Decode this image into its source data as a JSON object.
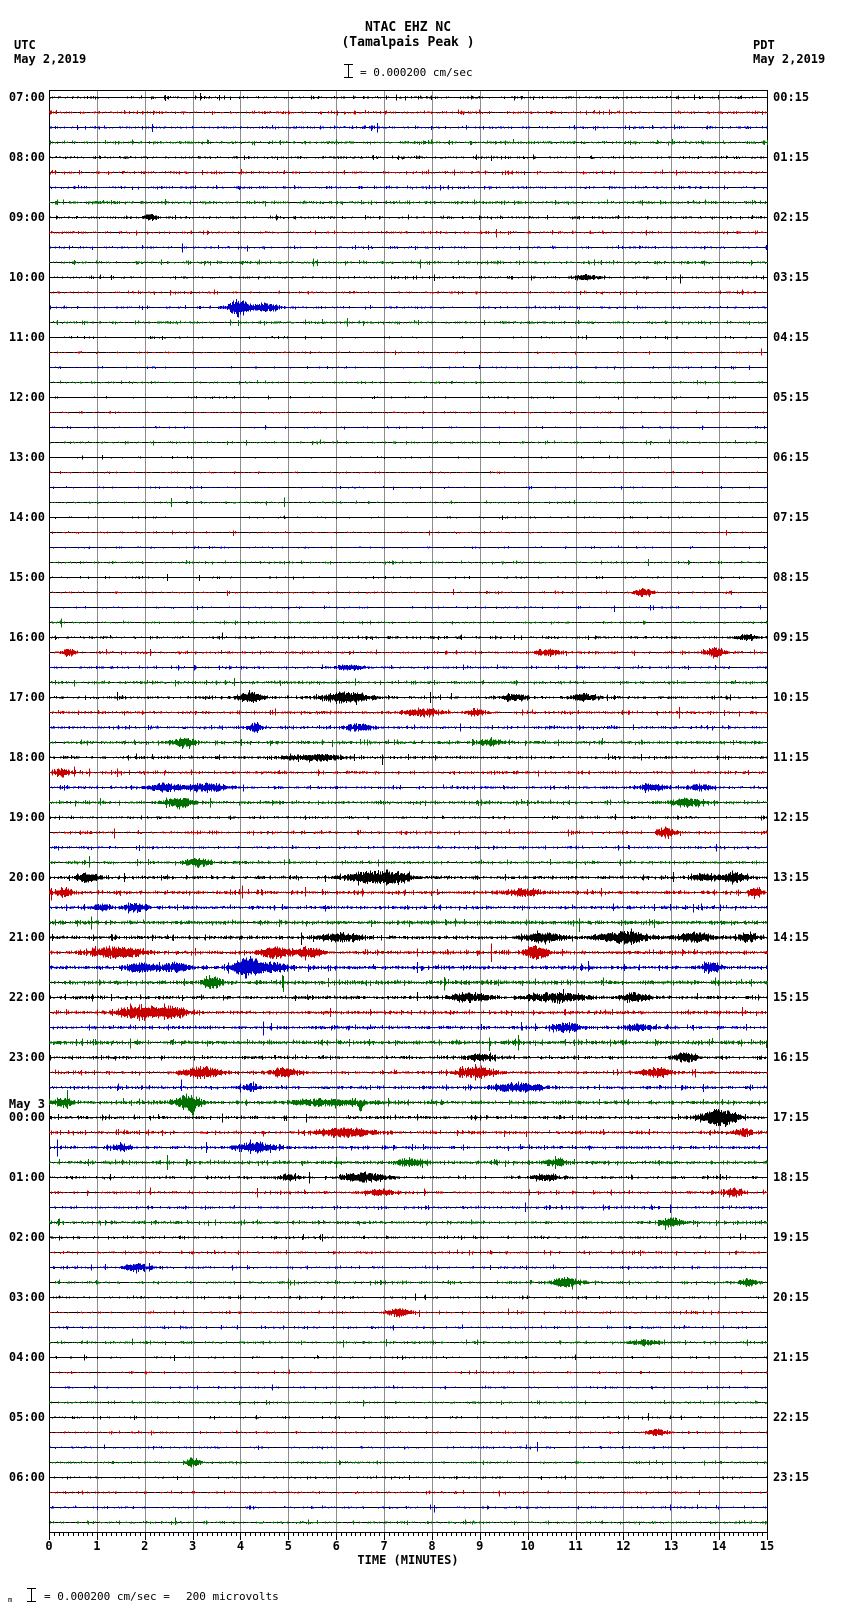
{
  "header": {
    "tz_left": "UTC",
    "date_left": "May 2,2019",
    "tz_right": "PDT",
    "date_right": "May 2,2019",
    "station": "NTAC EHZ NC",
    "location": "(Tamalpais Peak )",
    "scale_label": "= 0.000200 cm/sec"
  },
  "footer": {
    "lead_mark": "m",
    "scale_text": "= 0.000200 cm/sec =",
    "equiv_text": "200 microvolts"
  },
  "x_axis": {
    "label": "TIME (MINUTES)",
    "tick_labels": [
      "0",
      "1",
      "2",
      "3",
      "4",
      "5",
      "6",
      "7",
      "8",
      "9",
      "10",
      "11",
      "12",
      "13",
      "14",
      "15"
    ]
  },
  "chart_data": {
    "type": "line",
    "subtype": "helicorder",
    "title": "NTAC EHZ NC (Tamalpais Peak )",
    "xlabel": "TIME (MINUTES)",
    "x_range_minutes": [
      0,
      15
    ],
    "minutes_per_line": 15,
    "lines_per_hour": 4,
    "hours": 24,
    "trace_colors": [
      "#000000",
      "#c80000",
      "#0000c8",
      "#007000"
    ],
    "grid_color": "#8c8c8c",
    "utc_labels": [
      "07:00",
      "08:00",
      "09:00",
      "10:00",
      "11:00",
      "12:00",
      "13:00",
      "14:00",
      "15:00",
      "16:00",
      "17:00",
      "18:00",
      "19:00",
      "20:00",
      "21:00",
      "22:00",
      "23:00",
      "00:00",
      "01:00",
      "02:00",
      "03:00",
      "04:00",
      "05:00",
      "06:00"
    ],
    "utc_day_change": {
      "label": "May 3",
      "hour_index": 17
    },
    "pdt_labels": [
      "00:15",
      "01:15",
      "02:15",
      "03:15",
      "04:15",
      "05:15",
      "06:15",
      "07:15",
      "08:15",
      "09:15",
      "10:15",
      "11:15",
      "12:15",
      "13:15",
      "14:15",
      "15:15",
      "16:15",
      "17:15",
      "18:15",
      "19:15",
      "20:15",
      "21:15",
      "22:15",
      "23:15"
    ],
    "activity_by_hour": [
      0.9,
      0.9,
      0.85,
      0.8,
      0.6,
      0.6,
      0.55,
      0.6,
      0.65,
      0.9,
      1.0,
      1.0,
      0.9,
      1.2,
      1.3,
      1.2,
      1.1,
      1.1,
      0.95,
      0.85,
      0.75,
      0.7,
      0.7,
      0.75
    ],
    "noise_seed": 20190502,
    "events": [
      {
        "row": 8,
        "t": 2.1,
        "a": 3,
        "w": 0.15
      },
      {
        "row": 12,
        "t": 11.2,
        "a": 2.5,
        "w": 0.3
      },
      {
        "row": 14,
        "t": 3.95,
        "a": 8,
        "w": 0.22
      },
      {
        "row": 14,
        "t": 4.55,
        "a": 3.5,
        "w": 0.3
      },
      {
        "row": 33,
        "t": 12.4,
        "a": 4,
        "w": 0.2
      },
      {
        "row": 36,
        "t": 14.6,
        "a": 3,
        "w": 0.2
      },
      {
        "row": 37,
        "t": 0.4,
        "a": 3.5,
        "w": 0.15
      },
      {
        "row": 37,
        "t": 10.4,
        "a": 3,
        "w": 0.3
      },
      {
        "row": 37,
        "t": 13.9,
        "a": 4,
        "w": 0.2
      },
      {
        "row": 38,
        "t": 6.3,
        "a": 2.5,
        "w": 0.3
      },
      {
        "row": 40,
        "t": 4.2,
        "a": 4,
        "w": 0.3
      },
      {
        "row": 40,
        "t": 6.2,
        "a": 4.5,
        "w": 0.5
      },
      {
        "row": 40,
        "t": 9.7,
        "a": 3,
        "w": 0.3
      },
      {
        "row": 40,
        "t": 11.2,
        "a": 3,
        "w": 0.3
      },
      {
        "row": 41,
        "t": 7.8,
        "a": 3.5,
        "w": 0.4
      },
      {
        "row": 41,
        "t": 8.9,
        "a": 3,
        "w": 0.2
      },
      {
        "row": 42,
        "t": 4.3,
        "a": 4,
        "w": 0.15
      },
      {
        "row": 42,
        "t": 6.5,
        "a": 3,
        "w": 0.3
      },
      {
        "row": 43,
        "t": 2.8,
        "a": 4,
        "w": 0.25
      },
      {
        "row": 43,
        "t": 9.2,
        "a": 2.5,
        "w": 0.3
      },
      {
        "row": 44,
        "t": 5.5,
        "a": 3,
        "w": 0.6
      },
      {
        "row": 45,
        "t": 0.25,
        "a": 4,
        "w": 0.15
      },
      {
        "row": 46,
        "t": 2.4,
        "a": 4,
        "w": 0.3
      },
      {
        "row": 46,
        "t": 3.3,
        "a": 4,
        "w": 0.4
      },
      {
        "row": 46,
        "t": 12.6,
        "a": 3,
        "w": 0.3
      },
      {
        "row": 46,
        "t": 13.6,
        "a": 3,
        "w": 0.25
      },
      {
        "row": 47,
        "t": 2.7,
        "a": 4,
        "w": 0.3
      },
      {
        "row": 47,
        "t": 13.3,
        "a": 4,
        "w": 0.3
      },
      {
        "row": 49,
        "t": 12.9,
        "a": 4.5,
        "w": 0.2
      },
      {
        "row": 51,
        "t": 3.1,
        "a": 4,
        "w": 0.25
      },
      {
        "row": 52,
        "t": 0.8,
        "a": 4,
        "w": 0.2
      },
      {
        "row": 52,
        "t": 6.7,
        "a": 5,
        "w": 0.5
      },
      {
        "row": 52,
        "t": 7.3,
        "a": 4,
        "w": 0.3
      },
      {
        "row": 52,
        "t": 13.7,
        "a": 3,
        "w": 0.3
      },
      {
        "row": 52,
        "t": 14.3,
        "a": 4,
        "w": 0.25
      },
      {
        "row": 53,
        "t": 0.3,
        "a": 4,
        "w": 0.2
      },
      {
        "row": 53,
        "t": 9.9,
        "a": 3,
        "w": 0.4
      },
      {
        "row": 53,
        "t": 14.75,
        "a": 5,
        "w": 0.15
      },
      {
        "row": 54,
        "t": 1.1,
        "a": 3,
        "w": 0.2
      },
      {
        "row": 54,
        "t": 1.8,
        "a": 4,
        "w": 0.25
      },
      {
        "row": 56,
        "t": 6.1,
        "a": 4,
        "w": 0.4
      },
      {
        "row": 56,
        "t": 10.3,
        "a": 4,
        "w": 0.4
      },
      {
        "row": 56,
        "t": 12.0,
        "a": 5,
        "w": 0.5
      },
      {
        "row": 56,
        "t": 13.5,
        "a": 4,
        "w": 0.4
      },
      {
        "row": 56,
        "t": 14.6,
        "a": 4,
        "w": 0.2
      },
      {
        "row": 57,
        "t": 1.4,
        "a": 5,
        "w": 0.5
      },
      {
        "row": 57,
        "t": 4.7,
        "a": 5,
        "w": 0.3
      },
      {
        "row": 57,
        "t": 5.4,
        "a": 4,
        "w": 0.3
      },
      {
        "row": 57,
        "t": 10.2,
        "a": 6,
        "w": 0.25
      },
      {
        "row": 58,
        "t": 1.9,
        "a": 4,
        "w": 0.3
      },
      {
        "row": 58,
        "t": 2.6,
        "a": 4,
        "w": 0.3
      },
      {
        "row": 58,
        "t": 4.15,
        "a": 9,
        "w": 0.28
      },
      {
        "row": 58,
        "t": 4.7,
        "a": 4,
        "w": 0.3
      },
      {
        "row": 58,
        "t": 13.8,
        "a": 4,
        "w": 0.2
      },
      {
        "row": 59,
        "t": 3.4,
        "a": 5,
        "w": 0.2
      },
      {
        "row": 60,
        "t": 8.8,
        "a": 4,
        "w": 0.4
      },
      {
        "row": 60,
        "t": 10.6,
        "a": 4,
        "w": 0.6
      },
      {
        "row": 60,
        "t": 12.2,
        "a": 4,
        "w": 0.3
      },
      {
        "row": 61,
        "t": 1.9,
        "a": 6,
        "w": 0.45
      },
      {
        "row": 61,
        "t": 2.6,
        "a": 5,
        "w": 0.3
      },
      {
        "row": 62,
        "t": 10.8,
        "a": 4,
        "w": 0.3
      },
      {
        "row": 62,
        "t": 12.3,
        "a": 3,
        "w": 0.3
      },
      {
        "row": 64,
        "t": 9.0,
        "a": 3,
        "w": 0.3
      },
      {
        "row": 64,
        "t": 13.3,
        "a": 4,
        "w": 0.25
      },
      {
        "row": 65,
        "t": 3.2,
        "a": 5,
        "w": 0.4
      },
      {
        "row": 65,
        "t": 4.9,
        "a": 4,
        "w": 0.3
      },
      {
        "row": 65,
        "t": 8.9,
        "a": 5,
        "w": 0.4
      },
      {
        "row": 65,
        "t": 12.7,
        "a": 4,
        "w": 0.3
      },
      {
        "row": 66,
        "t": 4.2,
        "a": 3,
        "w": 0.2
      },
      {
        "row": 66,
        "t": 9.8,
        "a": 4,
        "w": 0.5
      },
      {
        "row": 67,
        "t": 0.3,
        "a": 4,
        "w": 0.2
      },
      {
        "row": 67,
        "t": 2.9,
        "a": 6,
        "w": 0.3
      },
      {
        "row": 67,
        "t": 3.0,
        "a": 9,
        "w": 0.04,
        "dir": -1
      },
      {
        "row": 67,
        "t": 5.8,
        "a": 3,
        "w": 0.8
      },
      {
        "row": 67,
        "t": 6.5,
        "a": 7,
        "w": 0.05,
        "dir": -1
      },
      {
        "row": 68,
        "t": 13.8,
        "a": 4,
        "w": 0.3
      },
      {
        "row": 68,
        "t": 14.1,
        "a": 6,
        "w": 0.3
      },
      {
        "row": 69,
        "t": 6.2,
        "a": 4,
        "w": 0.6
      },
      {
        "row": 69,
        "t": 14.5,
        "a": 3,
        "w": 0.2
      },
      {
        "row": 70,
        "t": 1.5,
        "a": 3,
        "w": 0.2
      },
      {
        "row": 70,
        "t": 4.3,
        "a": 4.5,
        "w": 0.4
      },
      {
        "row": 71,
        "t": 7.5,
        "a": 3,
        "w": 0.3
      },
      {
        "row": 71,
        "t": 10.6,
        "a": 3,
        "w": 0.25
      },
      {
        "row": 72,
        "t": 5.0,
        "a": 3,
        "w": 0.2
      },
      {
        "row": 72,
        "t": 6.6,
        "a": 4.5,
        "w": 0.5
      },
      {
        "row": 72,
        "t": 10.4,
        "a": 3,
        "w": 0.3
      },
      {
        "row": 73,
        "t": 6.9,
        "a": 3,
        "w": 0.3
      },
      {
        "row": 73,
        "t": 14.3,
        "a": 4,
        "w": 0.2
      },
      {
        "row": 75,
        "t": 13.0,
        "a": 4,
        "w": 0.25
      },
      {
        "row": 78,
        "t": 1.8,
        "a": 4,
        "w": 0.25
      },
      {
        "row": 79,
        "t": 10.8,
        "a": 4,
        "w": 0.3
      },
      {
        "row": 79,
        "t": 14.6,
        "a": 3,
        "w": 0.2
      },
      {
        "row": 81,
        "t": 7.3,
        "a": 4,
        "w": 0.25
      },
      {
        "row": 83,
        "t": 12.4,
        "a": 2.5,
        "w": 0.3
      },
      {
        "row": 89,
        "t": 12.7,
        "a": 3,
        "w": 0.25
      },
      {
        "row": 91,
        "t": 3.0,
        "a": 4,
        "w": 0.15
      }
    ]
  }
}
